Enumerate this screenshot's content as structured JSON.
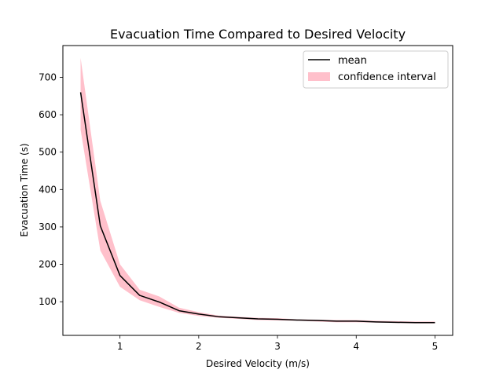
{
  "chart_data": {
    "type": "line",
    "title": "Evacuation Time Compared to Desired Velocity",
    "xlabel": "Desired Velocity (m/s)",
    "ylabel": "Evacuation Time (s)",
    "xlim": [
      0.275,
      5.225
    ],
    "ylim": [
      10,
      785
    ],
    "xticks": [
      1,
      2,
      3,
      4,
      5
    ],
    "yticks": [
      100,
      200,
      300,
      400,
      500,
      600,
      700
    ],
    "grid": false,
    "legend_position": "upper right",
    "x": [
      0.5,
      0.75,
      1.0,
      1.25,
      1.5,
      1.75,
      2.0,
      2.25,
      2.5,
      2.75,
      3.0,
      3.25,
      3.5,
      3.75,
      4.0,
      4.25,
      4.5,
      4.75,
      5.0
    ],
    "series": [
      {
        "name": "mean",
        "color": "#000000",
        "values": [
          660,
          303,
          170,
          117,
          99,
          76,
          67,
          60,
          57,
          54,
          53,
          51,
          50,
          48,
          48,
          46,
          45,
          44,
          44
        ]
      }
    ],
    "band": {
      "name": "confidence interval",
      "color": "#ffc0cb",
      "lower": [
        560,
        237,
        140,
        104,
        86,
        70,
        62,
        57,
        54,
        51,
        50,
        49,
        47,
        45,
        45,
        44,
        43,
        42,
        42
      ],
      "upper": [
        752,
        370,
        200,
        132,
        114,
        84,
        72,
        63,
        60,
        57,
        56,
        53,
        52,
        51,
        51,
        49,
        48,
        47,
        47
      ]
    }
  }
}
